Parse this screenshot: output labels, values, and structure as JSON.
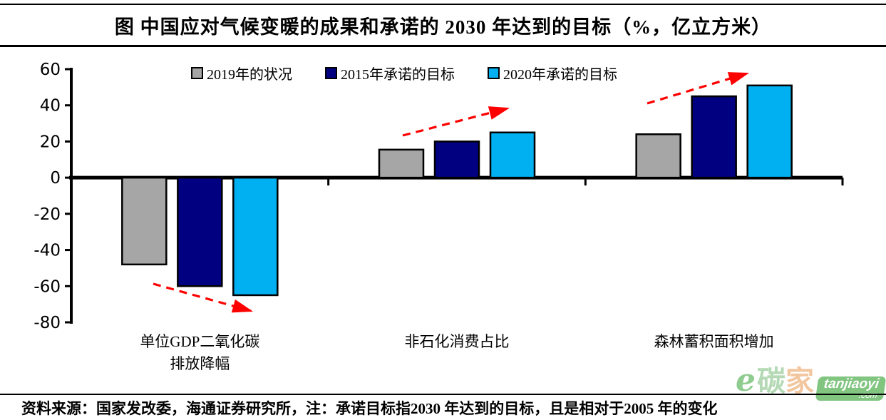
{
  "title": "图  中国应对气候变暖的成果和承诺的 2030 年达到的目标（%，亿立方米）",
  "chart_data": {
    "type": "bar",
    "title": "中国应对气候变暖的成果和承诺的2030年达到的目标",
    "units": "%，亿立方米",
    "categories": [
      "单位GDP二氧化碳排放降幅",
      "非石化消费占比",
      "森林蓄积面积增加"
    ],
    "categories_display": [
      [
        "单位GDP二氧化碳",
        "排放降幅"
      ],
      [
        "非石化消费占比"
      ],
      [
        "森林蓄积面积增加"
      ]
    ],
    "series": [
      {
        "name": "2019年的状况",
        "color": "#a6a6a6",
        "values": [
          -48,
          15.5,
          24
        ]
      },
      {
        "name": "2015年承诺的目标",
        "color": "#000080",
        "values": [
          -60,
          20,
          45
        ]
      },
      {
        "name": "2020年承诺的目标",
        "color": "#00b0f0",
        "values": [
          -65,
          25,
          51
        ]
      }
    ],
    "ylim": [
      -80,
      60
    ],
    "y_ticks": [
      60,
      40,
      20,
      0,
      -20,
      -40,
      -60,
      -80
    ],
    "grid": false,
    "legend_position": "top",
    "bar_border_color": "#000000",
    "annotations": [
      {
        "type": "trend-arrow",
        "category": "单位GDP二氧化碳排放降幅",
        "direction": "down",
        "color": "#ff0000",
        "style": "dashed"
      },
      {
        "type": "trend-arrow",
        "category": "非石化消费占比",
        "direction": "up",
        "color": "#ff0000",
        "style": "dashed"
      },
      {
        "type": "trend-arrow",
        "category": "森林蓄积面积增加",
        "direction": "up",
        "color": "#ff0000",
        "style": "dashed"
      }
    ]
  },
  "footer": {
    "note": "资料来源：国家发改委，海通证券研究所，注：承诺目标指2030 年达到的目标，且是相对于2005 年的变化"
  },
  "watermark": {
    "logo": "e",
    "brand_char_1": "碳",
    "brand_char_2": "家",
    "badge": "tanjiaoyi",
    "badge_suffix": ".com"
  }
}
